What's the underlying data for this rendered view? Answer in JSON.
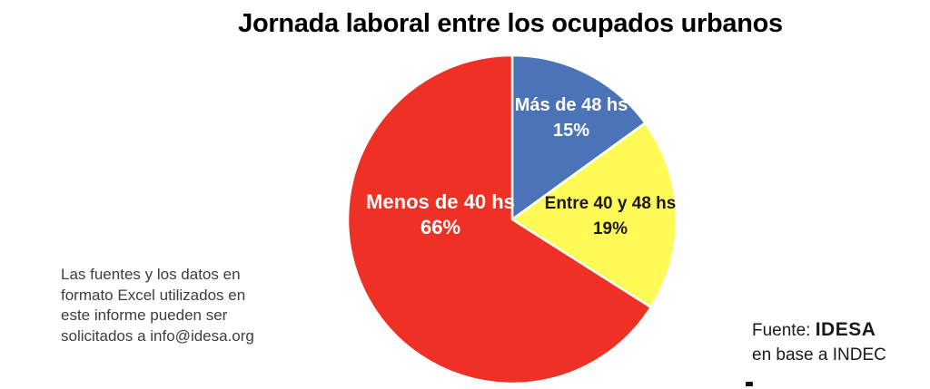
{
  "chart_data": {
    "type": "pie",
    "title": "Jornada laboral entre los ocupados urbanos",
    "start_angle_deg": 0,
    "direction": "clockwise",
    "legend": "none",
    "labels_on_slices": true,
    "slices": [
      {
        "label": "Más de 48 hs",
        "value": 15,
        "percent_label": "15%",
        "color": "#4B73B8",
        "text_color": "#ffffff"
      },
      {
        "label": "Entre 40 y 48 hs",
        "value": 19,
        "percent_label": "19%",
        "color": "#FFFA55",
        "text_color": "#1a1a1a"
      },
      {
        "label": "Menos de 40 hs",
        "value": 66,
        "percent_label": "66%",
        "color": "#EE3124",
        "text_color": "#ffffff"
      }
    ],
    "slice_border_color": "#ffffff"
  },
  "source_note": {
    "lines": [
      "Las fuentes y los datos en",
      "formato Excel utilizados en",
      "este informe pueden ser",
      "solicitados a info@idesa.org"
    ]
  },
  "attribution": {
    "prefix": "Fuente: ",
    "org": "IDESA",
    "line2": "en base a INDEC"
  }
}
